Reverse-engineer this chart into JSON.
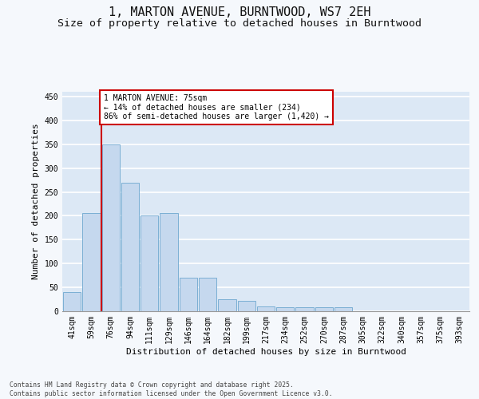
{
  "title_line1": "1, MARTON AVENUE, BURNTWOOD, WS7 2EH",
  "title_line2": "Size of property relative to detached houses in Burntwood",
  "xlabel": "Distribution of detached houses by size in Burntwood",
  "ylabel": "Number of detached properties",
  "bar_color": "#c5d8ee",
  "bar_edge_color": "#7bafd4",
  "categories": [
    "41sqm",
    "59sqm",
    "76sqm",
    "94sqm",
    "111sqm",
    "129sqm",
    "146sqm",
    "164sqm",
    "182sqm",
    "199sqm",
    "217sqm",
    "234sqm",
    "252sqm",
    "270sqm",
    "287sqm",
    "305sqm",
    "322sqm",
    "340sqm",
    "357sqm",
    "375sqm",
    "393sqm"
  ],
  "values": [
    40,
    205,
    350,
    270,
    200,
    205,
    70,
    70,
    25,
    22,
    10,
    8,
    8,
    8,
    8,
    0,
    0,
    0,
    0,
    0,
    0
  ],
  "ylim": [
    0,
    460
  ],
  "yticks": [
    0,
    50,
    100,
    150,
    200,
    250,
    300,
    350,
    400,
    450
  ],
  "annotation_text": "1 MARTON AVENUE: 75sqm\n← 14% of detached houses are smaller (234)\n86% of semi-detached houses are larger (1,420) →",
  "vline_color": "#cc0000",
  "background_color": "#dce8f5",
  "grid_color": "#ffffff",
  "fig_background": "#f5f8fc",
  "footnote": "Contains HM Land Registry data © Crown copyright and database right 2025.\nContains public sector information licensed under the Open Government Licence v3.0.",
  "title_fontsize": 11,
  "subtitle_fontsize": 9.5,
  "label_fontsize": 8,
  "tick_fontsize": 7,
  "annot_fontsize": 7
}
